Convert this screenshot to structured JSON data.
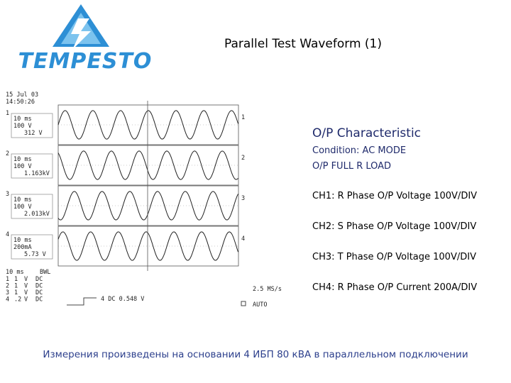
{
  "logo": {
    "text": "TEMPESTO"
  },
  "title": "Parallel Test Waveform (1)",
  "scope": {
    "date": "15 Jul 03",
    "time": "14:50:26",
    "channels": [
      {
        "num": "1",
        "timebase": "10 ms",
        "scale": "100 V",
        "reading": "312 V"
      },
      {
        "num": "2",
        "timebase": "10 ms",
        "scale": "100 V",
        "reading": "1.163kV"
      },
      {
        "num": "3",
        "timebase": "10 ms",
        "scale": "100 V",
        "reading": "2.013kV"
      },
      {
        "num": "4",
        "timebase": "10 ms",
        "scale": "200mA",
        "reading": "5.73 V"
      }
    ],
    "footer_timebase": "10 ms",
    "bwl": "BWL",
    "coupling_rows": [
      {
        "ch": "1",
        "val": "1",
        "unit": "V",
        "mode": "DC"
      },
      {
        "ch": "2",
        "val": "1",
        "unit": "V",
        "mode": "DC"
      },
      {
        "ch": "3",
        "val": "1",
        "unit": "V",
        "mode": "DC"
      },
      {
        "ch": "4",
        "val": ".2",
        "unit": "V",
        "mode": "DC"
      }
    ],
    "trigger": "4  DC 0.548 V",
    "sample_rate": "2.5 MS/s",
    "mode": "AUTO"
  },
  "characteristic": {
    "title": "O/P Characteristic",
    "condition_1": "Condition: AC MODE",
    "condition_2": "O/P FULL R LOAD",
    "ch1": "CH1: R Phase O/P Voltage 100V/DIV",
    "ch2": "CH2: S Phase O/P Voltage 100V/DIV",
    "ch3": "CH3: T Phase O/P Voltage 100V/DIV",
    "ch4": "CH4: R Phase O/P Current 200A/DIV"
  },
  "footer": "Измерения произведены на основании 4 ИБП 80 кВА в параллельном подключении"
}
